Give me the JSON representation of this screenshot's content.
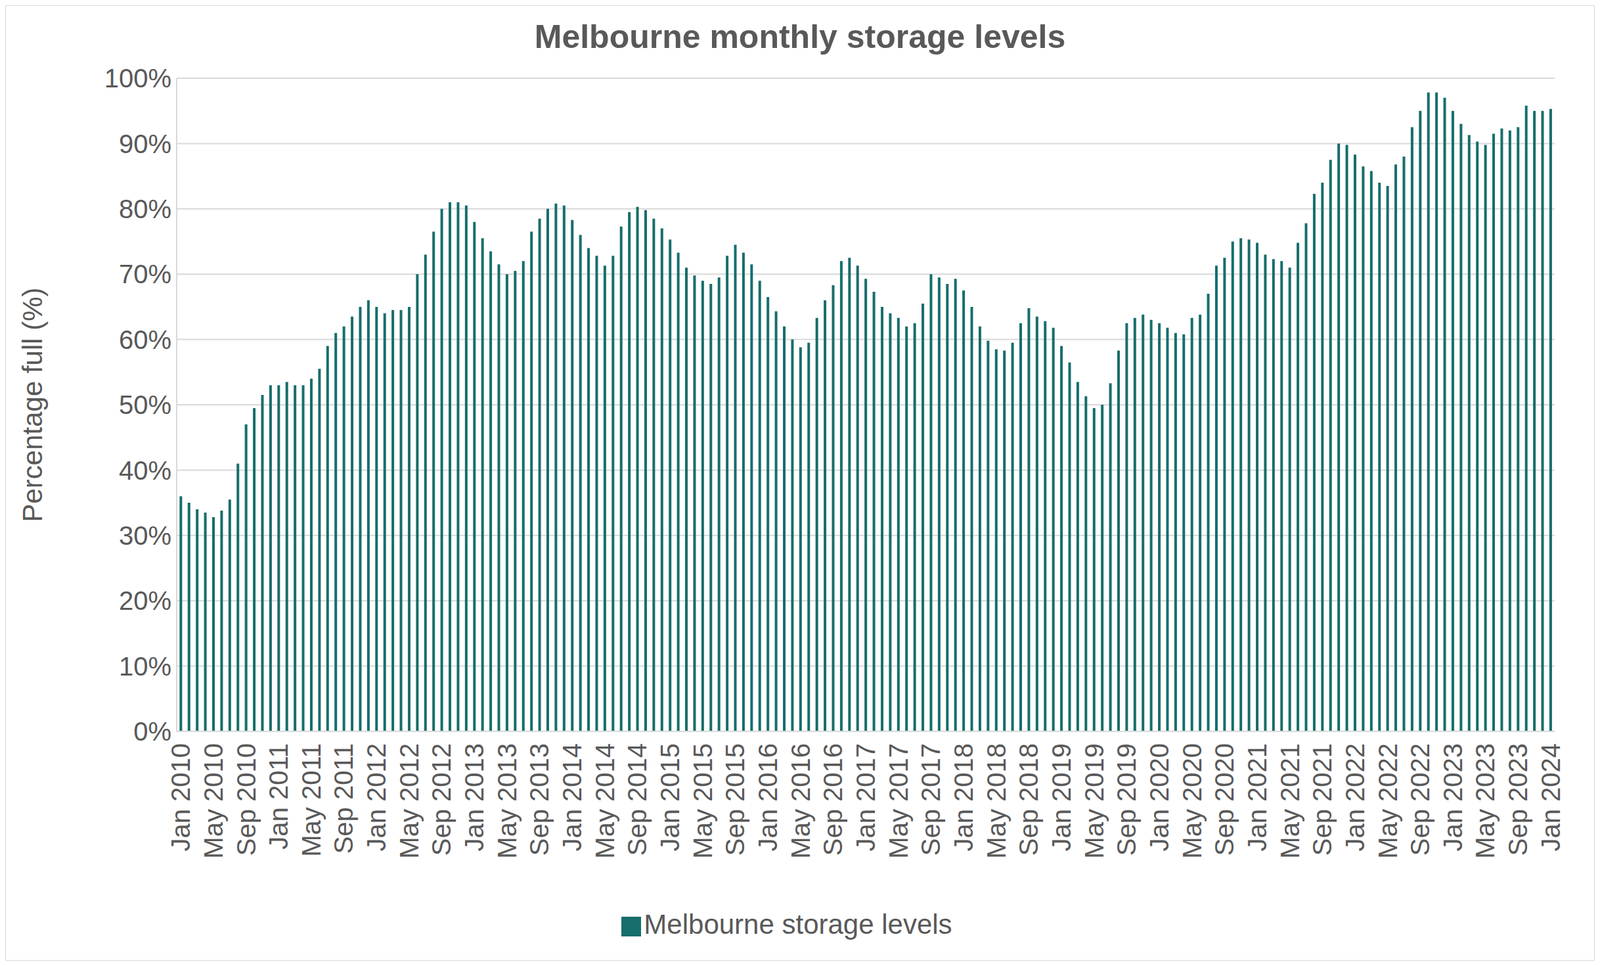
{
  "chart_data": {
    "type": "bar",
    "title": "Melbourne monthly storage levels",
    "y_label": "Percentage full (%)",
    "categories": [
      "Jan 2010",
      null,
      null,
      null,
      "May 2010",
      null,
      null,
      null,
      "Sep 2010",
      null,
      null,
      null,
      "Jan 2011",
      null,
      null,
      null,
      "May 2011",
      null,
      null,
      null,
      "Sep 2011",
      null,
      null,
      null,
      "Jan 2012",
      null,
      null,
      null,
      "May 2012",
      null,
      null,
      null,
      "Sep 2012",
      null,
      null,
      null,
      "Jan 2013",
      null,
      null,
      null,
      "May 2013",
      null,
      null,
      null,
      "Sep 2013",
      null,
      null,
      null,
      "Jan 2014",
      null,
      null,
      null,
      "May 2014",
      null,
      null,
      null,
      "Sep 2014",
      null,
      null,
      null,
      "Jan 2015",
      null,
      null,
      null,
      "May 2015",
      null,
      null,
      null,
      "Sep 2015",
      null,
      null,
      null,
      "Jan 2016",
      null,
      null,
      null,
      "May 2016",
      null,
      null,
      null,
      "Sep 2016",
      null,
      null,
      null,
      "Jan 2017",
      null,
      null,
      null,
      "May 2017",
      null,
      null,
      null,
      "Sep 2017",
      null,
      null,
      null,
      "Jan 2018",
      null,
      null,
      null,
      "May 2018",
      null,
      null,
      null,
      "Sep 2018",
      null,
      null,
      null,
      "Jan 2019",
      null,
      null,
      null,
      "May 2019",
      null,
      null,
      null,
      "Sep 2019",
      null,
      null,
      null,
      "Jan 2020",
      null,
      null,
      null,
      "May 2020",
      null,
      null,
      null,
      "Sep 2020",
      null,
      null,
      null,
      "Jan 2021",
      null,
      null,
      null,
      "May 2021",
      null,
      null,
      null,
      "Sep 2021",
      null,
      null,
      null,
      "Jan 2022",
      null,
      null,
      null,
      "May 2022",
      null,
      null,
      null,
      "Sep 2022",
      null,
      null,
      null,
      "Jan 2023",
      null,
      null,
      null,
      "May 2023",
      null,
      null,
      null,
      "Sep 2023",
      null,
      null,
      null,
      "Jan 2024"
    ],
    "series": [
      {
        "name": "Melbourne storage levels",
        "color": "#176e6c",
        "values": [
          36,
          35,
          34,
          33.5,
          32.8,
          33.8,
          35.5,
          41,
          47,
          49.5,
          51.5,
          53,
          53,
          53.5,
          53,
          53,
          54,
          55.5,
          59,
          61,
          62,
          63.5,
          65,
          66,
          65,
          64,
          64.5,
          64.5,
          65,
          70,
          73,
          76.5,
          80,
          81,
          81,
          80.5,
          78,
          75.5,
          73.5,
          71.5,
          70,
          70.5,
          72,
          76.5,
          78.5,
          80,
          80.8,
          80.5,
          78.3,
          76,
          74,
          72.8,
          71.3,
          72.8,
          77.3,
          79.5,
          80.3,
          79.8,
          78.5,
          77,
          75.3,
          73.3,
          71,
          69.8,
          69,
          68.5,
          69.5,
          72.8,
          74.5,
          73.3,
          71.5,
          69,
          66.5,
          64.3,
          62,
          60,
          58.8,
          59.5,
          63.3,
          66,
          68.3,
          72,
          72.5,
          71.3,
          69.3,
          67.3,
          65,
          64,
          63.3,
          62,
          62.5,
          65.5,
          70,
          69.5,
          68.5,
          69.3,
          67.5,
          65,
          62,
          59.8,
          58.5,
          58.3,
          59.5,
          62.5,
          64.8,
          63.5,
          62.8,
          61.8,
          59,
          56.5,
          53.5,
          51.3,
          49.5,
          50,
          53.3,
          58.3,
          62.5,
          63.3,
          63.8,
          63,
          62.5,
          61.8,
          61,
          60.8,
          63.3,
          63.8,
          67,
          71.3,
          72.5,
          75,
          75.5,
          75.3,
          74.8,
          73,
          72.3,
          72,
          71,
          74.8,
          77.8,
          82.3,
          84,
          87.5,
          90,
          89.8,
          88.3,
          86.5,
          85.8,
          84,
          83.5,
          86.8,
          88,
          92.5,
          95,
          97.8,
          97.8,
          97,
          95,
          93,
          91.3,
          90.3,
          89.8,
          91.5,
          92.3,
          92,
          92.5,
          95.8,
          95,
          95,
          95.3
        ]
      }
    ],
    "ylim": [
      0,
      100
    ],
    "yticks": [
      {
        "value": 0,
        "label": "0%"
      },
      {
        "value": 10,
        "label": "10%"
      },
      {
        "value": 20,
        "label": "20%"
      },
      {
        "value": 30,
        "label": "30%"
      },
      {
        "value": 40,
        "label": "40%"
      },
      {
        "value": 50,
        "label": "50%"
      },
      {
        "value": 60,
        "label": "60%"
      },
      {
        "value": 70,
        "label": "70%"
      },
      {
        "value": 80,
        "label": "80%"
      },
      {
        "value": 90,
        "label": "90%"
      },
      {
        "value": 100,
        "label": "100%"
      }
    ],
    "grid": true,
    "legend": "bottom"
  }
}
